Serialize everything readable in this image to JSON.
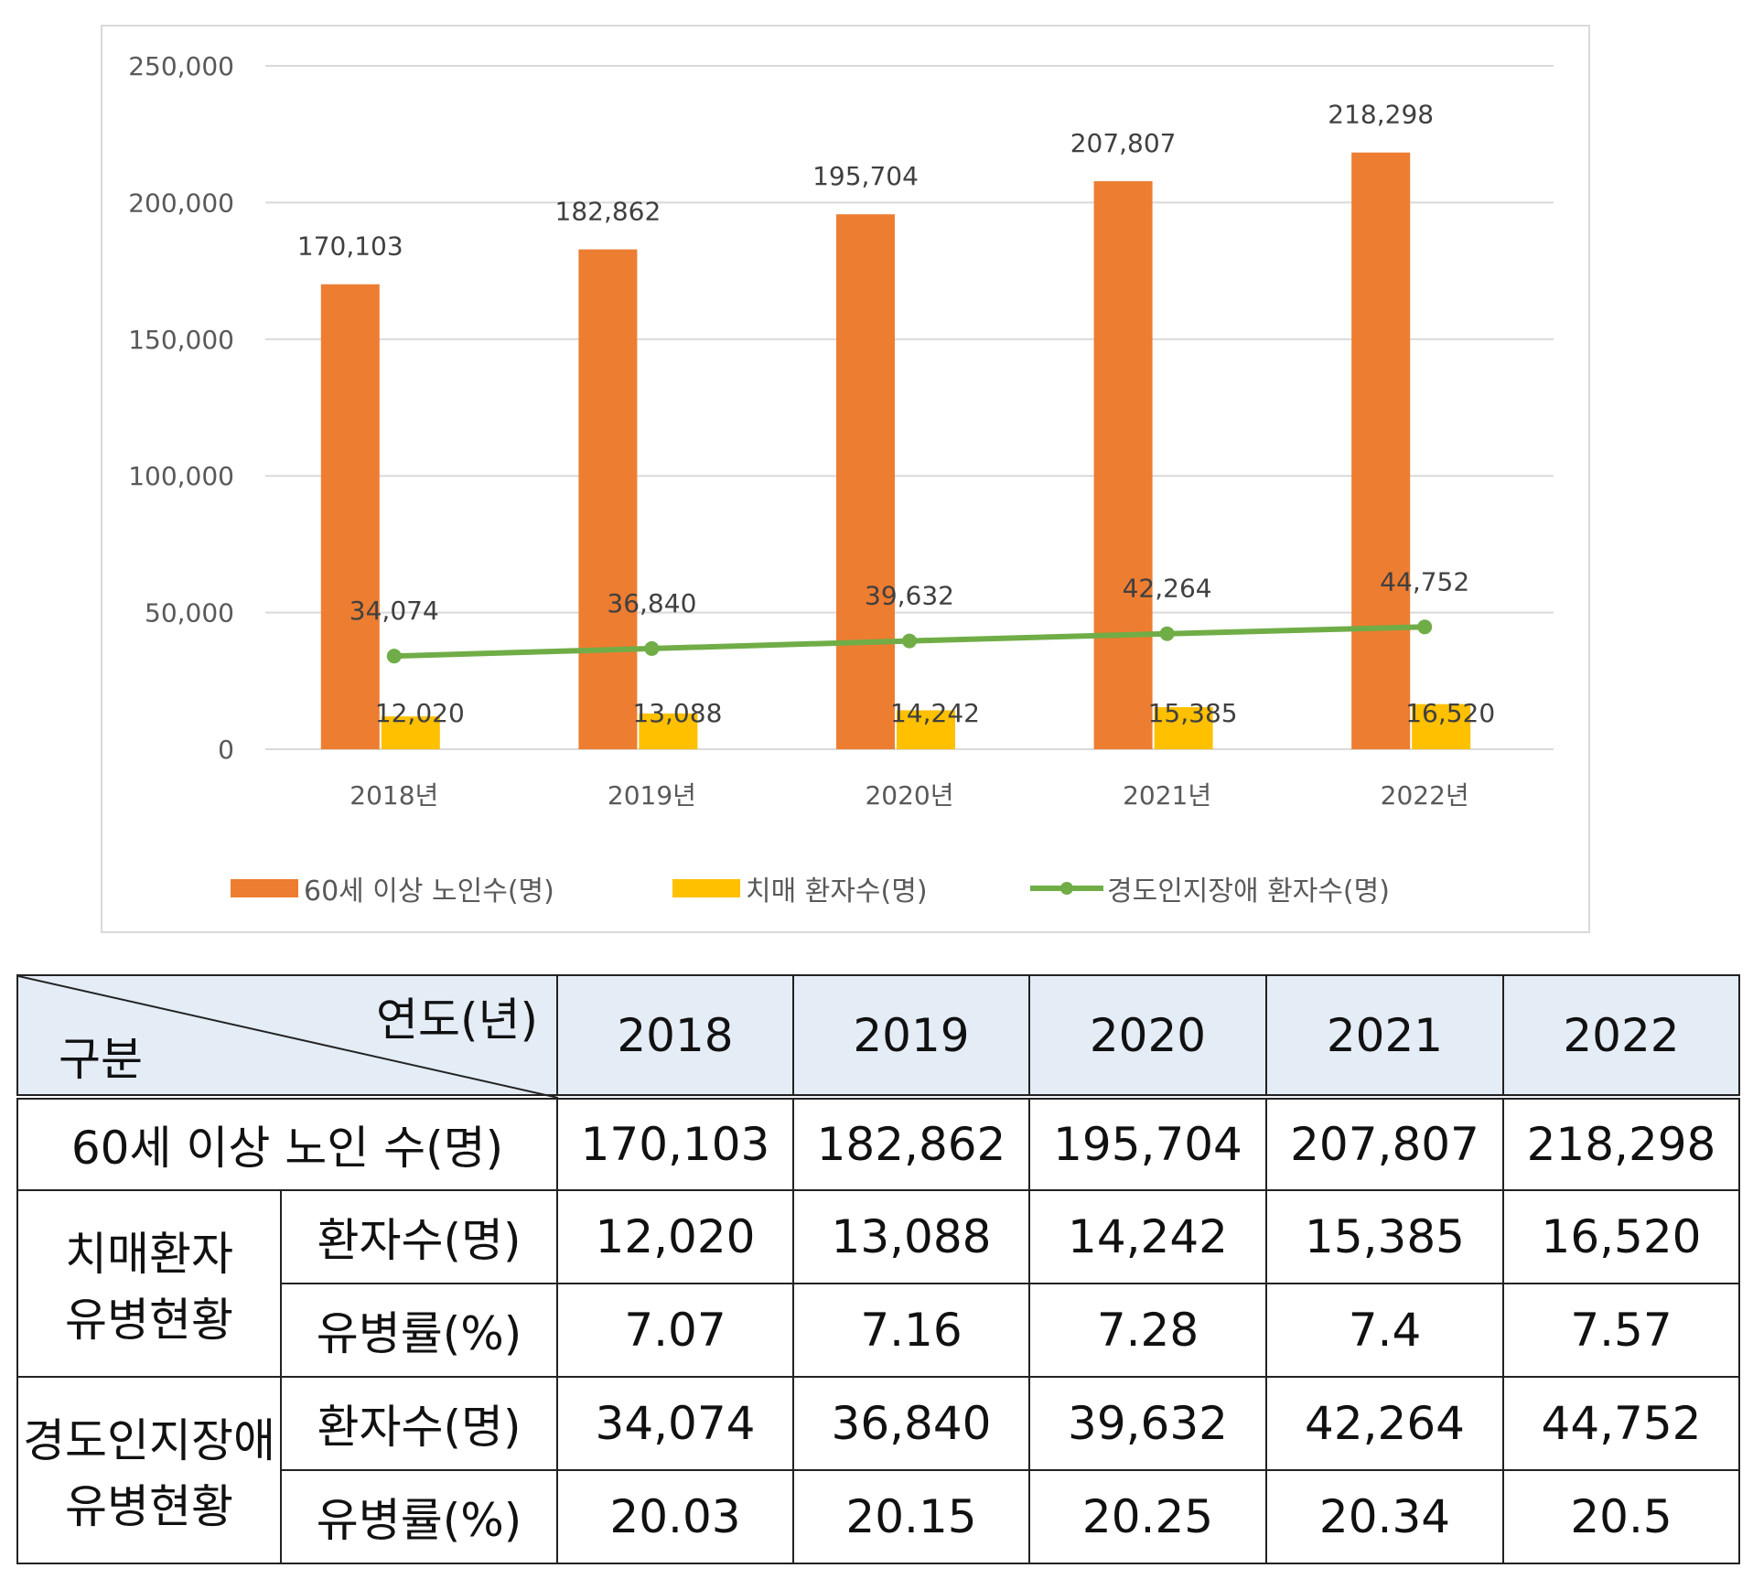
{
  "chart_data": {
    "type": "bar+line",
    "categories": [
      "2018년",
      "2019년",
      "2020년",
      "2021년",
      "2022년"
    ],
    "ylim": [
      0,
      250000
    ],
    "yticks": [
      "0",
      "50,000",
      "100,000",
      "150,000",
      "200,000",
      "250,000"
    ],
    "grid": true,
    "legend_position": "bottom",
    "series": [
      {
        "name": "60세 이상 노인수(명)",
        "type": "bar",
        "color": "#ed7d31",
        "values": [
          170103,
          182862,
          195704,
          207807,
          218298
        ],
        "labels": [
          "170,103",
          "182,862",
          "195,704",
          "207,807",
          "218,298"
        ]
      },
      {
        "name": "치매 환자수(명)",
        "type": "bar",
        "color": "#ffc000",
        "values": [
          12020,
          13088,
          14242,
          15385,
          16520
        ],
        "labels": [
          "12,020",
          "13,088",
          "14,242",
          "15,385",
          "16,520"
        ]
      },
      {
        "name": "경도인지장애 환자수(명)",
        "type": "line",
        "color": "#70ad47",
        "values": [
          34074,
          36840,
          39632,
          42264,
          44752
        ],
        "labels": [
          "34,074",
          "36,840",
          "39,632",
          "42,264",
          "44,752"
        ]
      }
    ]
  },
  "table": {
    "corner_top": "연도(년)",
    "corner_bottom": "구분",
    "years": [
      "2018",
      "2019",
      "2020",
      "2021",
      "2022"
    ],
    "elderly_label": "60세 이상 노인 수(명)",
    "elderly": [
      "170,103",
      "182,862",
      "195,704",
      "207,807",
      "218,298"
    ],
    "dementia_group": [
      "치매환자",
      "유병현황"
    ],
    "mci_group": [
      "경도인지장애",
      "유병현황"
    ],
    "count_label": "환자수(명)",
    "rate_label": "유병률(%)",
    "dementia_count": [
      "12,020",
      "13,088",
      "14,242",
      "15,385",
      "16,520"
    ],
    "dementia_rate": [
      "7.07",
      "7.16",
      "7.28",
      "7.4",
      "7.57"
    ],
    "mci_count": [
      "34,074",
      "36,840",
      "39,632",
      "42,264",
      "44,752"
    ],
    "mci_rate": [
      "20.03",
      "20.15",
      "20.25",
      "20.34",
      "20.5"
    ]
  }
}
